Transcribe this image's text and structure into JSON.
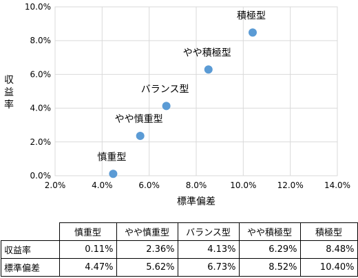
{
  "chart_data": {
    "type": "scatter",
    "xlabel": "標準偏差",
    "ylabel": "収益率",
    "xlim": [
      2.0,
      14.0
    ],
    "ylim": [
      0.0,
      10.0
    ],
    "x_ticks": [
      "2.0%",
      "4.0%",
      "6.0%",
      "8.0%",
      "10.0%",
      "12.0%",
      "14.0%"
    ],
    "y_ticks": [
      "0.0%",
      "2.0%",
      "4.0%",
      "6.0%",
      "8.0%",
      "10.0%"
    ],
    "point_color": "#5b9bd5",
    "points": [
      {
        "label": "慎重型",
        "x": 4.47,
        "y": 0.11
      },
      {
        "label": "やや慎重型",
        "x": 5.62,
        "y": 2.36
      },
      {
        "label": "バランス型",
        "x": 6.73,
        "y": 4.13
      },
      {
        "label": "やや積極型",
        "x": 8.52,
        "y": 6.29
      },
      {
        "label": "積極型",
        "x": 10.4,
        "y": 8.48
      }
    ]
  },
  "table": {
    "columns": [
      "慎重型",
      "やや慎重型",
      "バランス型",
      "やや積極型",
      "積極型"
    ],
    "rows": [
      {
        "label": "収益率",
        "values": [
          "0.11%",
          "2.36%",
          "4.13%",
          "6.29%",
          "8.48%"
        ]
      },
      {
        "label": "標準偏差",
        "values": [
          "4.47%",
          "5.62%",
          "6.73%",
          "8.52%",
          "10.40%"
        ]
      }
    ]
  }
}
